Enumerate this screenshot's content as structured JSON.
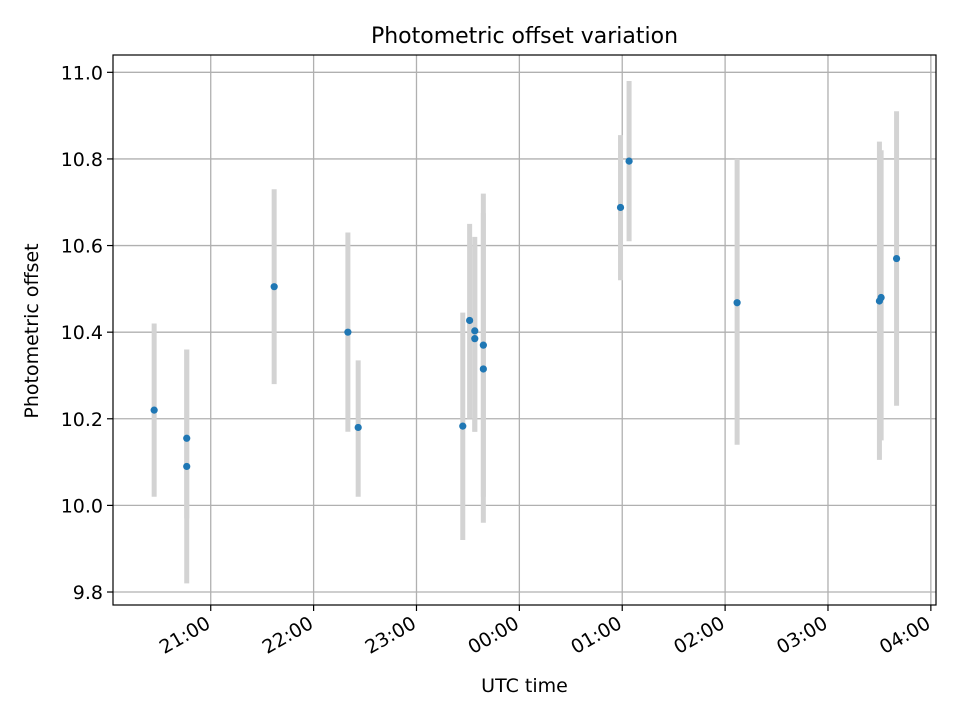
{
  "chart_data": {
    "type": "scatter",
    "title": "Photometric offset variation",
    "xlabel": "UTC time",
    "ylabel": "Photometric offset",
    "x_axis_type": "time",
    "xlim": [
      "20:03",
      "04:03"
    ],
    "ylim": [
      9.77,
      11.04
    ],
    "xticks": [
      "21:00",
      "22:00",
      "23:00",
      "00:00",
      "01:00",
      "02:00",
      "03:00",
      "04:00"
    ],
    "yticks": [
      9.8,
      10.0,
      10.2,
      10.4,
      10.6,
      10.8,
      11.0
    ],
    "ytick_labels": [
      "9.8",
      "10.0",
      "10.2",
      "10.4",
      "10.6",
      "10.8",
      "11.0"
    ],
    "grid": true,
    "legend": false,
    "colors": {
      "points": "#1f77b4",
      "errorbars": "#d3d3d3",
      "grid": "#b0b0b0"
    },
    "series": [
      {
        "points": [
          {
            "x": "20:27",
            "y": 10.22,
            "ylow": 10.02,
            "yhigh": 10.42
          },
          {
            "x": "20:46",
            "y": 10.155,
            "ylow": 9.97,
            "yhigh": 10.36
          },
          {
            "x": "20:46",
            "y": 10.09,
            "ylow": 9.82,
            "yhigh": 10.36
          },
          {
            "x": "21:37",
            "y": 10.505,
            "ylow": 10.28,
            "yhigh": 10.73
          },
          {
            "x": "22:20",
            "y": 10.4,
            "ylow": 10.17,
            "yhigh": 10.63
          },
          {
            "x": "22:26",
            "y": 10.18,
            "ylow": 10.02,
            "yhigh": 10.335
          },
          {
            "x": "23:27",
            "y": 10.183,
            "ylow": 9.92,
            "yhigh": 10.445
          },
          {
            "x": "23:31",
            "y": 10.427,
            "ylow": 10.2,
            "yhigh": 10.65
          },
          {
            "x": "23:34",
            "y": 10.403,
            "ylow": 10.17,
            "yhigh": 10.62
          },
          {
            "x": "23:34",
            "y": 10.385,
            "ylow": 10.17,
            "yhigh": 10.6
          },
          {
            "x": "23:39",
            "y": 10.37,
            "ylow": 10.02,
            "yhigh": 10.72
          },
          {
            "x": "23:39",
            "y": 10.315,
            "ylow": 9.96,
            "yhigh": 10.675
          },
          {
            "x": "00:59",
            "y": 10.688,
            "ylow": 10.52,
            "yhigh": 10.855
          },
          {
            "x": "01:04",
            "y": 10.795,
            "ylow": 10.61,
            "yhigh": 10.98
          },
          {
            "x": "02:07",
            "y": 10.468,
            "ylow": 10.14,
            "yhigh": 10.8
          },
          {
            "x": "03:30",
            "y": 10.472,
            "ylow": 10.105,
            "yhigh": 10.84
          },
          {
            "x": "03:31",
            "y": 10.48,
            "ylow": 10.15,
            "yhigh": 10.82
          },
          {
            "x": "03:40",
            "y": 10.57,
            "ylow": 10.23,
            "yhigh": 10.91
          }
        ]
      }
    ]
  }
}
